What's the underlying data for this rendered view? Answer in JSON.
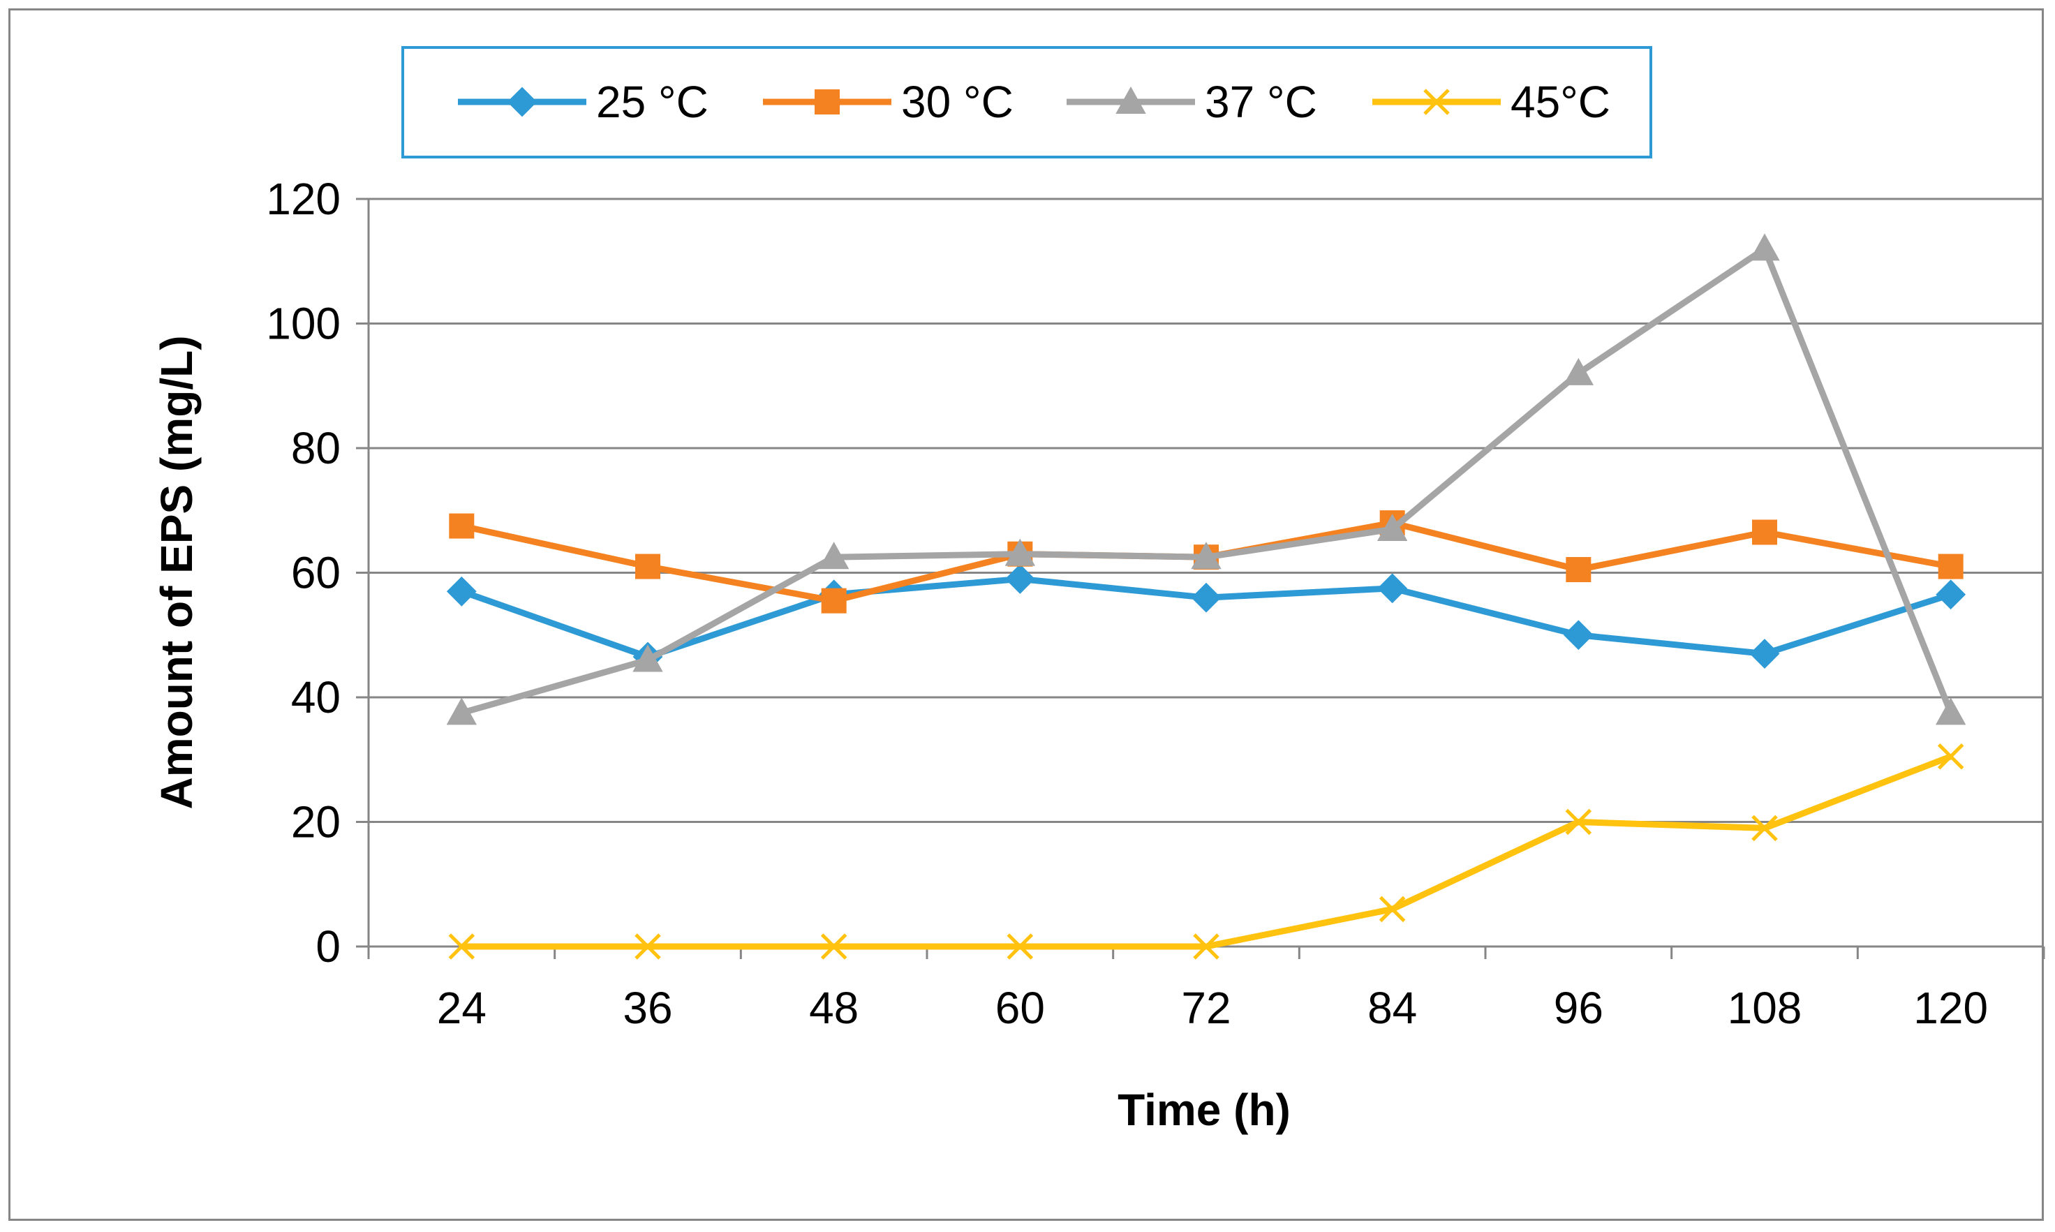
{
  "chart_data": {
    "type": "line",
    "xlabel": "Time (h)",
    "ylabel": "Amount of EPS (mg/L)",
    "categories": [
      "24",
      "36",
      "48",
      "60",
      "72",
      "84",
      "96",
      "108",
      "120"
    ],
    "ylim": [
      0,
      120
    ],
    "yticks": [
      "0",
      "20",
      "40",
      "60",
      "80",
      "100",
      "120"
    ],
    "grid": true,
    "legend_position": "top",
    "series": [
      {
        "name": "25 °C",
        "color": "#2E9AD5",
        "marker": "diamond",
        "values": [
          57,
          46.5,
          56.5,
          59,
          56,
          57.5,
          50,
          47,
          56.5
        ]
      },
      {
        "name": "30 °C",
        "color": "#F58220",
        "marker": "square",
        "values": [
          67.5,
          61,
          55.5,
          63,
          62.5,
          68,
          60.5,
          66.5,
          61
        ]
      },
      {
        "name": "37 °C",
        "color": "#A5A5A5",
        "marker": "triangle",
        "values": [
          37.5,
          46,
          62.5,
          63,
          62.5,
          67,
          92,
          112,
          37.5
        ]
      },
      {
        "name": "45°C",
        "color": "#FFC20E",
        "marker": "x",
        "values": [
          0,
          0,
          0,
          0,
          0,
          6,
          20,
          19,
          30.5
        ]
      }
    ]
  }
}
